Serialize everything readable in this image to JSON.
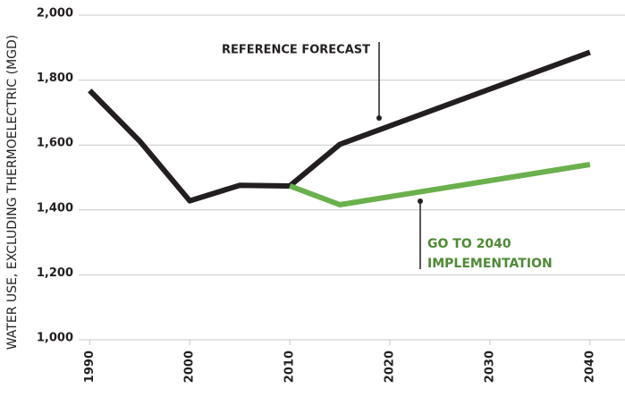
{
  "chart_data": {
    "type": "line",
    "y_label": "WATER USE, EXCLUDING THERMOELECTRIC (MGD)",
    "x": [
      1990,
      1995,
      2000,
      2005,
      2010,
      2015,
      2040
    ],
    "series": [
      {
        "name": "REFERENCE FORECAST",
        "color": "#231f20",
        "values": [
          1768,
          1612,
          1428,
          1476,
          1474,
          1602,
          1886
        ]
      },
      {
        "name": "GO TO 2040 IMPLEMENTATION",
        "color": "#6ab04c",
        "values": [
          null,
          null,
          null,
          null,
          1474,
          1416,
          1540
        ]
      }
    ],
    "annotations": [
      {
        "lines": [
          "REFERENCE FORECAST"
        ],
        "color": "#231f20"
      },
      {
        "lines": [
          "GO TO 2040",
          "IMPLEMENTATION"
        ],
        "color": "#4e8a35"
      }
    ],
    "xlim": [
      1988.9,
      2043.5
    ],
    "xticks": [
      1990,
      2000,
      2010,
      2020,
      2030,
      2040
    ],
    "ylim": [
      1000,
      2000
    ],
    "yticks": [
      {
        "value": 1000,
        "label": "1,000"
      },
      {
        "value": 1200,
        "label": "1,200"
      },
      {
        "value": 1400,
        "label": "1,400"
      },
      {
        "value": 1600,
        "label": "1,600"
      },
      {
        "value": 1800,
        "label": "1,800"
      },
      {
        "value": 2000,
        "label": "2,000"
      }
    ],
    "grid": true
  }
}
